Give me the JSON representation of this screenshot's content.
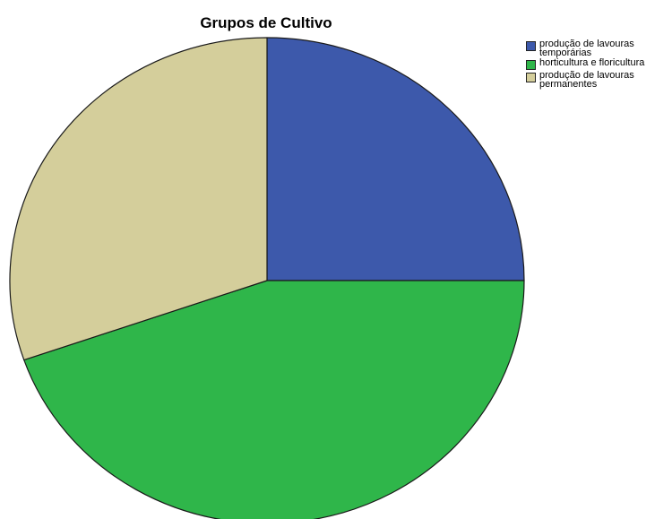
{
  "chart_data": {
    "type": "pie",
    "title": "Grupos de Cultivo",
    "legend_position": "top-right",
    "slices": [
      {
        "name": "produção de lavouras temporárias",
        "value": 25.0,
        "color": "#3d59ab"
      },
      {
        "name": "horticultura e floricultura",
        "value": 44.7,
        "color": "#2fb64a"
      },
      {
        "name": "produção de lavouras permanentes",
        "value": 30.3,
        "color": "#d4ce9b"
      }
    ]
  }
}
